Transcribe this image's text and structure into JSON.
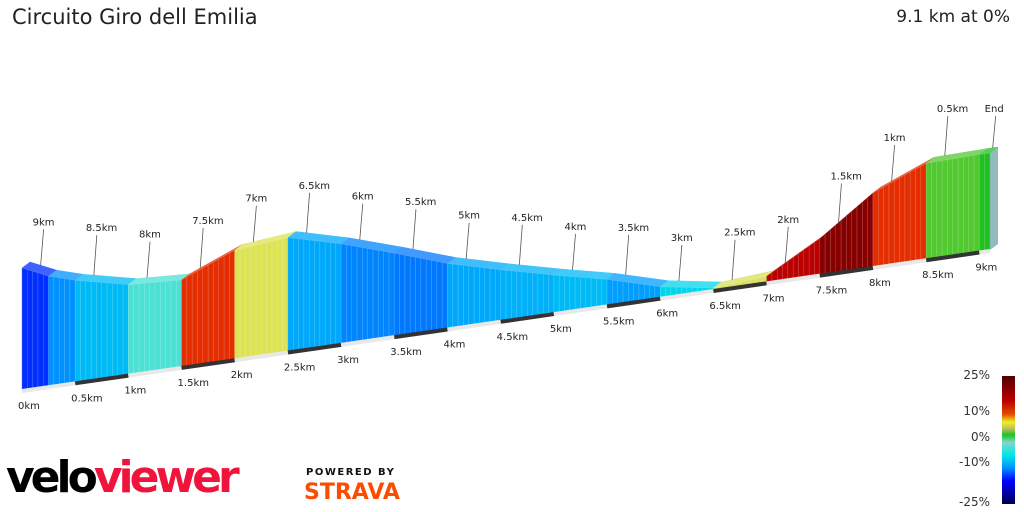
{
  "header": {
    "title": "Circuito Giro dell Emilia",
    "summary": "9.1 km at 0%"
  },
  "chart_data": {
    "type": "area",
    "title": "Circuito Giro dell Emilia",
    "total_distance_km": 9.1,
    "avg_gradient_pct": 0,
    "distance_km": [
      0,
      0.25,
      0.5,
      1,
      1.5,
      2,
      2.5,
      3,
      3.5,
      4,
      4.5,
      5,
      5.5,
      6,
      6.5,
      7,
      7.5,
      8,
      8.5,
      9,
      9.1
    ],
    "elevation_rel": [
      122,
      110,
      102,
      90,
      87,
      109,
      114,
      100,
      83,
      65,
      51,
      38,
      26,
      11,
      2,
      6,
      36,
      74,
      96,
      97,
      97
    ],
    "front_ticks": [
      "0km",
      "0.5km",
      "1km",
      "1.5km",
      "2km",
      "2.5km",
      "3km",
      "3.5km",
      "4km",
      "4.5km",
      "5km",
      "5.5km",
      "6km",
      "6.5km",
      "7km",
      "7.5km",
      "8km",
      "8.5km",
      "9km"
    ],
    "back_ticks": [
      "9km",
      "8.5km",
      "8km",
      "7.5km",
      "7km",
      "6.5km",
      "6km",
      "5.5km",
      "5km",
      "4.5km",
      "4km",
      "3.5km",
      "3km",
      "2.5km",
      "2km",
      "1.5km",
      "1km",
      "0.5km",
      "End"
    ],
    "colorscale": {
      "labels": [
        "25%",
        "10%",
        "0%",
        "-10%",
        "-25%"
      ],
      "min": -25,
      "max": 25
    }
  },
  "branding": {
    "logo_part1": "velo",
    "logo_part2": "viewer",
    "powered_by": "POWERED BY",
    "strava": "STRAVA"
  }
}
